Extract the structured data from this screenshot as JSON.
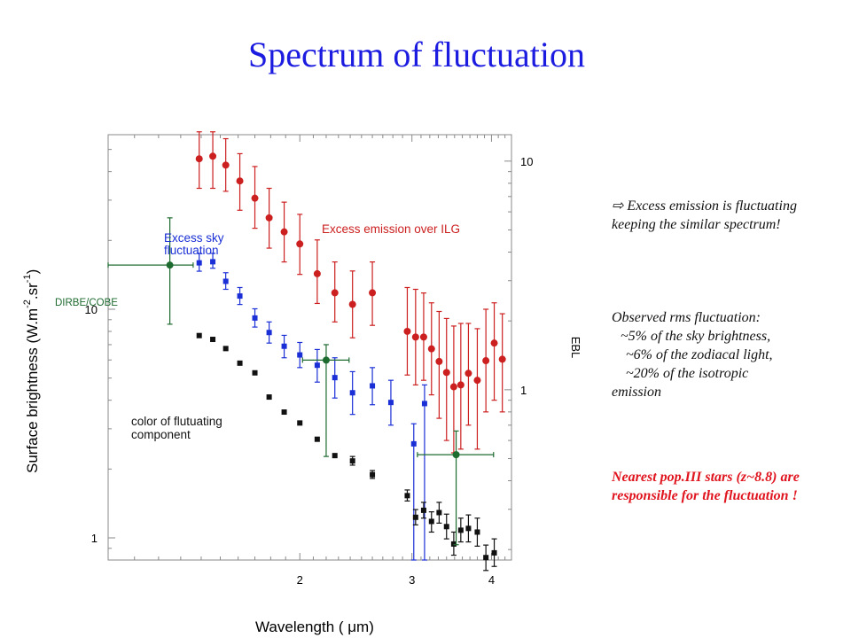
{
  "page": {
    "title": "Spectrum of fluctuation",
    "annotations": {
      "excess": {
        "arrow": "⇨",
        "text": "Excess emission is fluctuating keeping the similar spectrum!"
      },
      "rms": {
        "line1": "Observed rms fluctuation:",
        "line2": "~5% of the sky brightness,",
        "line3": "~6% of the zodiacal light,",
        "line4": "~20% of the isotropic",
        "line5": "emission"
      },
      "conclusion": "Nearest pop.III stars (z~8.8) are responsible for the fluctuation !"
    }
  },
  "chart_data": {
    "type": "scatter",
    "xlabel": "Wavelength ( μm)",
    "ylabel": "Surface brightness (W.m-2.sr-1)",
    "ylabel_parts": {
      "main": "Surface brightness (W.m",
      "sup1": "-2",
      "mid": ".sr",
      "sup2": "-1",
      "end": ")"
    },
    "y2label": "EBL",
    "x_scale": "log",
    "y_scale": "log",
    "xlim": [
      1.0,
      4.3
    ],
    "ylim": [
      0.8,
      58
    ],
    "y2lim": [
      0.18,
      13.05
    ],
    "x_ticks": [
      {
        "value": 2,
        "label": "2"
      },
      {
        "value": 3,
        "label": "3"
      },
      {
        "value": 4,
        "label": "4"
      }
    ],
    "y_ticks": [
      {
        "value": 1,
        "label": "1"
      },
      {
        "value": 10,
        "label": "10"
      }
    ],
    "y2_ticks": [
      {
        "value": 1,
        "label": "1"
      },
      {
        "value": 10,
        "label": "10"
      }
    ],
    "labels": {
      "excess_ilg": "Excess emission over ILG",
      "excess_sky_1": "Excess sky",
      "excess_sky_2": "fluctuation",
      "dirbe": "DIRBE/COBE",
      "color_1": "color of flutuating",
      "color_2": "component"
    },
    "series": [
      {
        "key": "excess_ilg",
        "color": "#cc1f1f",
        "marker": "circle",
        "axis": "y",
        "points": [
          {
            "x": 1.39,
            "y": 45.5,
            "lo": 33.8,
            "hi": 59.7
          },
          {
            "x": 1.46,
            "y": 46.7,
            "lo": 33.8,
            "hi": 59.7
          },
          {
            "x": 1.53,
            "y": 42.7,
            "lo": 32.8,
            "hi": 55.7
          },
          {
            "x": 1.61,
            "y": 36.4,
            "lo": 27.1,
            "hi": 47.9
          },
          {
            "x": 1.7,
            "y": 30.6,
            "lo": 22.6,
            "hi": 42.1
          },
          {
            "x": 1.79,
            "y": 25.1,
            "lo": 18.5,
            "hi": 33.8
          },
          {
            "x": 1.89,
            "y": 21.8,
            "lo": 16.1,
            "hi": 29.4
          },
          {
            "x": 2.0,
            "y": 19.3,
            "lo": 14.2,
            "hi": 26.0
          },
          {
            "x": 2.13,
            "y": 14.3,
            "lo": 10.6,
            "hi": 20.1
          },
          {
            "x": 2.27,
            "y": 11.8,
            "lo": 8.8,
            "hi": 16.1
          },
          {
            "x": 2.42,
            "y": 10.5,
            "lo": 7.5,
            "hi": 14.7
          },
          {
            "x": 2.6,
            "y": 11.8,
            "lo": 8.5,
            "hi": 16.1
          }
        ]
      },
      {
        "key": "excess_ilg_long",
        "color": "#cc1f1f",
        "marker": "circle",
        "axis": "y2",
        "points": [
          {
            "x": 2.95,
            "y": 1.8,
            "lo": 1.16,
            "hi": 2.8
          },
          {
            "x": 3.04,
            "y": 1.7,
            "lo": 1.05,
            "hi": 2.75
          },
          {
            "x": 3.13,
            "y": 1.7,
            "lo": 1.1,
            "hi": 2.65
          },
          {
            "x": 3.22,
            "y": 1.51,
            "lo": 0.95,
            "hi": 2.4
          },
          {
            "x": 3.31,
            "y": 1.33,
            "lo": 0.75,
            "hi": 2.2
          },
          {
            "x": 3.4,
            "y": 1.19,
            "lo": 0.6,
            "hi": 2.05
          },
          {
            "x": 3.49,
            "y": 1.03,
            "lo": 0.53,
            "hi": 1.9
          },
          {
            "x": 3.58,
            "y": 1.05,
            "lo": 0.55,
            "hi": 1.95
          },
          {
            "x": 3.68,
            "y": 1.18,
            "lo": 0.7,
            "hi": 1.95
          },
          {
            "x": 3.8,
            "y": 1.1,
            "lo": 0.55,
            "hi": 1.85
          },
          {
            "x": 3.92,
            "y": 1.34,
            "lo": 0.8,
            "hi": 2.25
          },
          {
            "x": 4.04,
            "y": 1.6,
            "lo": 0.9,
            "hi": 2.4
          },
          {
            "x": 4.16,
            "y": 1.36,
            "lo": 0.8,
            "hi": 2.15
          }
        ]
      },
      {
        "key": "excess_sky",
        "color": "#1a2fd6",
        "marker": "square",
        "axis": "y2",
        "points": [
          {
            "x": 1.39,
            "y": 3.59,
            "lo": 3.3,
            "hi": 3.95
          },
          {
            "x": 1.46,
            "y": 3.63,
            "lo": 3.4,
            "hi": 3.95
          },
          {
            "x": 1.53,
            "y": 2.98,
            "lo": 2.75,
            "hi": 3.25
          },
          {
            "x": 1.61,
            "y": 2.57,
            "lo": 2.36,
            "hi": 2.8
          },
          {
            "x": 1.7,
            "y": 2.06,
            "lo": 1.88,
            "hi": 2.26
          },
          {
            "x": 1.79,
            "y": 1.78,
            "lo": 1.6,
            "hi": 1.98
          },
          {
            "x": 1.89,
            "y": 1.55,
            "lo": 1.38,
            "hi": 1.73
          },
          {
            "x": 2.0,
            "y": 1.42,
            "lo": 1.25,
            "hi": 1.61
          },
          {
            "x": 2.13,
            "y": 1.28,
            "lo": 1.08,
            "hi": 1.5
          },
          {
            "x": 2.27,
            "y": 1.13,
            "lo": 0.92,
            "hi": 1.38
          },
          {
            "x": 2.42,
            "y": 0.97,
            "lo": 0.78,
            "hi": 1.2
          },
          {
            "x": 2.6,
            "y": 1.04,
            "lo": 0.86,
            "hi": 1.25
          },
          {
            "x": 2.78,
            "y": 0.88,
            "lo": 0.7,
            "hi": 1.1
          },
          {
            "x": 3.02,
            "y": 0.58,
            "lo": 0.18,
            "hi": 0.71
          },
          {
            "x": 3.14,
            "y": 0.87,
            "lo": 0.18,
            "hi": 1.05
          }
        ]
      },
      {
        "key": "color_component",
        "color": "#111111",
        "marker": "square",
        "axis": "y",
        "points": [
          {
            "x": 1.39,
            "y": 7.67
          },
          {
            "x": 1.46,
            "y": 7.38
          },
          {
            "x": 1.53,
            "y": 6.73
          },
          {
            "x": 1.61,
            "y": 5.81
          },
          {
            "x": 1.7,
            "y": 5.27
          },
          {
            "x": 1.79,
            "y": 4.13
          },
          {
            "x": 1.89,
            "y": 3.55
          },
          {
            "x": 2.0,
            "y": 3.18
          },
          {
            "x": 2.13,
            "y": 2.7
          },
          {
            "x": 2.27,
            "y": 2.29
          },
          {
            "x": 2.42,
            "y": 2.17,
            "lo": 2.08,
            "hi": 2.27
          },
          {
            "x": 2.6,
            "y": 1.89,
            "lo": 1.82,
            "hi": 1.97
          },
          {
            "x": 2.95,
            "y": 1.53,
            "lo": 1.45,
            "hi": 1.62
          },
          {
            "x": 3.04,
            "y": 1.23,
            "lo": 1.14,
            "hi": 1.33
          },
          {
            "x": 3.13,
            "y": 1.32,
            "lo": 1.22,
            "hi": 1.43
          },
          {
            "x": 3.22,
            "y": 1.18,
            "lo": 1.06,
            "hi": 1.3
          },
          {
            "x": 3.31,
            "y": 1.29,
            "lo": 1.16,
            "hi": 1.43
          },
          {
            "x": 3.4,
            "y": 1.12,
            "lo": 0.99,
            "hi": 1.27
          },
          {
            "x": 3.49,
            "y": 0.94,
            "lo": 0.84,
            "hi": 1.06
          },
          {
            "x": 3.58,
            "y": 1.08,
            "lo": 0.96,
            "hi": 1.22
          },
          {
            "x": 3.68,
            "y": 1.1,
            "lo": 0.96,
            "hi": 1.26
          },
          {
            "x": 3.8,
            "y": 1.06,
            "lo": 0.92,
            "hi": 1.22
          },
          {
            "x": 3.92,
            "y": 0.82,
            "lo": 0.72,
            "hi": 0.93
          },
          {
            "x": 4.04,
            "y": 0.86,
            "lo": 0.75,
            "hi": 0.99
          }
        ]
      },
      {
        "key": "dirbe",
        "color": "#1e6b30",
        "marker": "circle",
        "axis": "y",
        "points": [
          {
            "x": 1.25,
            "y": 15.6,
            "xlo": 1.0,
            "xhi": 1.36,
            "lo": 8.6,
            "hi": 25.1
          },
          {
            "x": 2.2,
            "y": 5.99,
            "xlo": 2.02,
            "xhi": 2.39,
            "lo": 2.27,
            "hi": 7.0
          }
        ]
      },
      {
        "key": "dirbe_long",
        "color": "#1e6b30",
        "marker": "circle",
        "axis": "y2",
        "points": [
          {
            "x": 3.52,
            "y": 0.52,
            "xlo": 3.06,
            "xhi": 4.03,
            "lo": 0.21,
            "hi": 0.66
          }
        ]
      }
    ]
  }
}
